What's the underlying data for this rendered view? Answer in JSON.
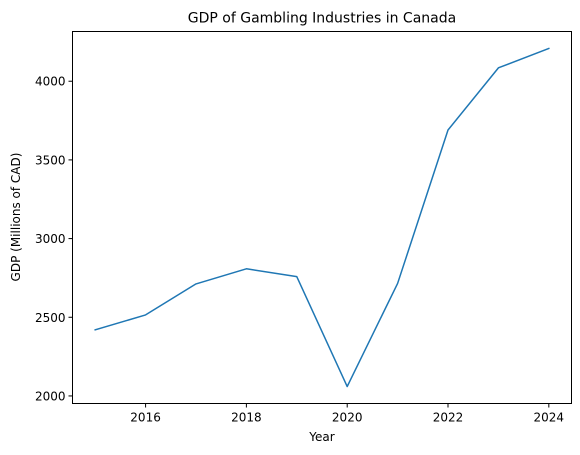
{
  "chart_data": {
    "type": "line",
    "title": "GDP of Gambling Industries in Canada",
    "xlabel": "Year",
    "ylabel": "GDP (Millions of CAD)",
    "x": [
      2015,
      2016,
      2017,
      2018,
      2019,
      2020,
      2021,
      2022,
      2023,
      2024
    ],
    "series": [
      {
        "values": [
          2420,
          2515,
          2712,
          2808,
          2758,
          2060,
          2715,
          3690,
          4085,
          4208
        ],
        "color": "#1f77b4"
      }
    ],
    "xlim": [
      2014.55,
      2024.45
    ],
    "ylim": [
      1952,
      4316
    ],
    "xticks": [
      2016,
      2018,
      2020,
      2022,
      2024
    ],
    "yticks": [
      2000,
      2500,
      3000,
      3500,
      4000
    ],
    "grid": false,
    "legend": "none"
  }
}
